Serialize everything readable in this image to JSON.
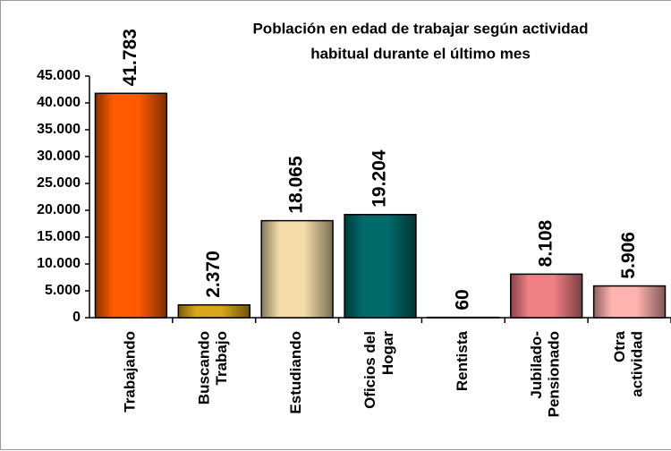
{
  "chart_data": {
    "type": "bar",
    "title": [
      "Población en edad de trabajar según actividad",
      "habitual durante el último mes"
    ],
    "categories": [
      "Trabajando",
      "Buscando Trabajo",
      "Estudiando",
      "Oficios del Hogar",
      "Rentista",
      "Jubilado-Pensionado",
      "Otra actividad"
    ],
    "values": [
      41783,
      2370,
      18065,
      19204,
      60,
      8108,
      5906
    ],
    "value_labels": [
      "41.783",
      "2.370",
      "18.065",
      "19.204",
      "60",
      "8.108",
      "5.906"
    ],
    "colors": [
      "#ff5a00",
      "#d9a81a",
      "#f3dcaa",
      "#006a6a",
      "#c8c8c8",
      "#f07f86",
      "#ffb3b0"
    ],
    "ylim": [
      0,
      45000
    ],
    "yticks": [
      0,
      {
        "value": 5000,
        "label": "5.000"
      },
      {
        "value": 10000,
        "label": "10.000"
      },
      {
        "value": 15000,
        "label": "15.000"
      },
      {
        "value": 20000,
        "label": "20.000"
      },
      {
        "value": 25000,
        "label": "25.000"
      },
      {
        "value": 30000,
        "label": "30.000"
      },
      {
        "value": 35000,
        "label": "35.000"
      },
      {
        "value": 40000,
        "label": "40.000"
      },
      {
        "value": 45000,
        "label": "45.000"
      }
    ],
    "grid": false
  }
}
